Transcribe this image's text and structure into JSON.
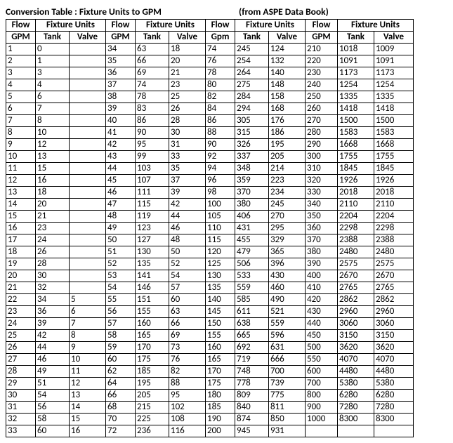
{
  "header": {
    "title": "Conversion Table : Fixture Units to GPM",
    "source": "(from ASPE Data Book)"
  },
  "columns": {
    "group_flow": "Flow",
    "group_fu": "Fixture Units",
    "gpm": "GPM",
    "gpm_alt": "Gpm",
    "tank": "Tank",
    "valve": "Valve"
  },
  "rows": [
    [
      "1",
      "0",
      "",
      "34",
      "63",
      "18",
      "74",
      "245",
      "124",
      "210",
      "1018",
      "1009"
    ],
    [
      "2",
      "1",
      "",
      "35",
      "66",
      "20",
      "76",
      "254",
      "132",
      "220",
      "1091",
      "1091"
    ],
    [
      "3",
      "3",
      "",
      "36",
      "69",
      "21",
      "78",
      "264",
      "140",
      "230",
      "1173",
      "1173"
    ],
    [
      "4",
      "4",
      "",
      "37",
      "74",
      "23",
      "80",
      "275",
      "148",
      "240",
      "1254",
      "1254"
    ],
    [
      "5",
      "6",
      "",
      "38",
      "78",
      "25",
      "82",
      "284",
      "158",
      "250",
      "1335",
      "1335"
    ],
    [
      "6",
      "7",
      "",
      "39",
      "83",
      "26",
      "84",
      "294",
      "168",
      "260",
      "1418",
      "1418"
    ],
    [
      "7",
      "8",
      "",
      "40",
      "86",
      "28",
      "86",
      "305",
      "176",
      "270",
      "1500",
      "1500"
    ],
    [
      "8",
      "10",
      "",
      "41",
      "90",
      "30",
      "88",
      "315",
      "186",
      "280",
      "1583",
      "1583"
    ],
    [
      "9",
      "12",
      "",
      "42",
      "95",
      "31",
      "90",
      "326",
      "195",
      "290",
      "1668",
      "1668"
    ],
    [
      "10",
      "13",
      "",
      "43",
      "99",
      "33",
      "92",
      "337",
      "205",
      "300",
      "1755",
      "1755"
    ],
    [
      "11",
      "15",
      "",
      "44",
      "103",
      "35",
      "94",
      "348",
      "214",
      "310",
      "1845",
      "1845"
    ],
    [
      "12",
      "16",
      "",
      "45",
      "107",
      "37",
      "96",
      "359",
      "223",
      "320",
      "1926",
      "1926"
    ],
    [
      "13",
      "18",
      "",
      "46",
      "111",
      "39",
      "98",
      "370",
      "234",
      "330",
      "2018",
      "2018"
    ],
    [
      "14",
      "20",
      "",
      "47",
      "115",
      "42",
      "100",
      "380",
      "245",
      "340",
      "2110",
      "2110"
    ],
    [
      "15",
      "21",
      "",
      "48",
      "119",
      "44",
      "105",
      "406",
      "270",
      "350",
      "2204",
      "2204"
    ],
    [
      "16",
      "23",
      "",
      "49",
      "123",
      "46",
      "110",
      "431",
      "295",
      "360",
      "2298",
      "2298"
    ],
    [
      "17",
      "24",
      "",
      "50",
      "127",
      "48",
      "115",
      "455",
      "329",
      "370",
      "2388",
      "2388"
    ],
    [
      "18",
      "26",
      "",
      "51",
      "130",
      "50",
      "120",
      "479",
      "365",
      "380",
      "2480",
      "2480"
    ],
    [
      "19",
      "28",
      "",
      "52",
      "135",
      "52",
      "125",
      "506",
      "396",
      "390",
      "2575",
      "2575"
    ],
    [
      "20",
      "30",
      "",
      "53",
      "141",
      "54",
      "130",
      "533",
      "430",
      "400",
      "2670",
      "2670"
    ],
    [
      "21",
      "32",
      "",
      "54",
      "146",
      "57",
      "135",
      "559",
      "460",
      "410",
      "2765",
      "2765"
    ],
    [
      "22",
      "34",
      "5",
      "55",
      "151",
      "60",
      "140",
      "585",
      "490",
      "420",
      "2862",
      "2862"
    ],
    [
      "23",
      "36",
      "6",
      "56",
      "155",
      "63",
      "145",
      "611",
      "521",
      "430",
      "2960",
      "2960"
    ],
    [
      "24",
      "39",
      "7",
      "57",
      "160",
      "66",
      "150",
      "638",
      "559",
      "440",
      "3060",
      "3060"
    ],
    [
      "25",
      "42",
      "8",
      "58",
      "165",
      "69",
      "155",
      "665",
      "596",
      "450",
      "3150",
      "3150"
    ],
    [
      "26",
      "44",
      "9",
      "59",
      "170",
      "73",
      "160",
      "692",
      "631",
      "500",
      "3620",
      "3620"
    ],
    [
      "27",
      "46",
      "10",
      "60",
      "175",
      "76",
      "165",
      "719",
      "666",
      "550",
      "4070",
      "4070"
    ],
    [
      "28",
      "49",
      "11",
      "62",
      "185",
      "82",
      "170",
      "748",
      "700",
      "600",
      "4480",
      "4480"
    ],
    [
      "29",
      "51",
      "12",
      "64",
      "195",
      "88",
      "175",
      "778",
      "739",
      "700",
      "5380",
      "5380"
    ],
    [
      "30",
      "54",
      "13",
      "66",
      "205",
      "95",
      "180",
      "809",
      "775",
      "800",
      "6280",
      "6280"
    ],
    [
      "31",
      "56",
      "14",
      "68",
      "215",
      "102",
      "185",
      "840",
      "811",
      "900",
      "7280",
      "7280"
    ],
    [
      "32",
      "58",
      "15",
      "70",
      "225",
      "108",
      "190",
      "874",
      "850",
      "1000",
      "8300",
      "8300"
    ],
    [
      "33",
      "60",
      "16",
      "72",
      "236",
      "116",
      "200",
      "945",
      "931",
      "",
      "",
      ""
    ]
  ]
}
